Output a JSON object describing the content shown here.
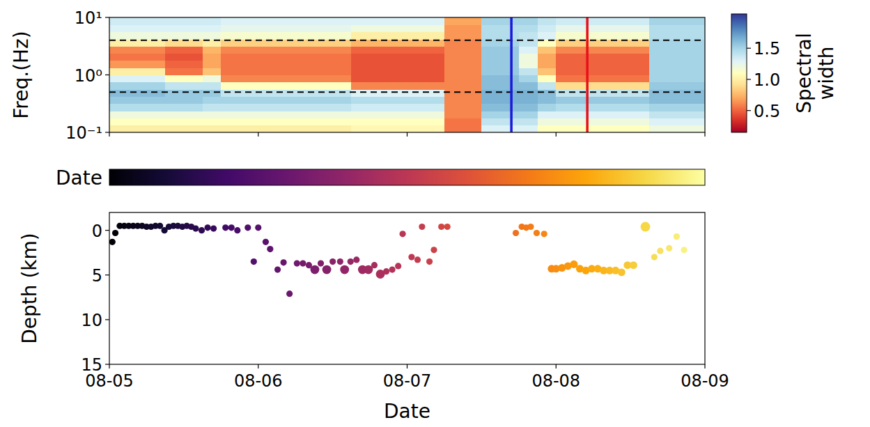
{
  "chart_data": [
    {
      "type": "heatmap",
      "y_label": "Freq.(Hz)",
      "log": "y",
      "xlim": [
        0,
        4
      ],
      "xticks": [
        0,
        1,
        2,
        3,
        4
      ],
      "ylim": [
        0.1,
        10
      ],
      "yticks": [
        {
          "value": 0.1,
          "label": "10⁻¹"
        },
        {
          "value": 1,
          "label": "10⁰"
        },
        {
          "value": 10,
          "label": "10¹"
        }
      ],
      "tick_labels": "y",
      "x_edges": [
        0,
        0.125,
        0.25,
        0.375,
        0.5,
        0.625,
        0.75,
        0.875,
        1,
        1.125,
        1.25,
        1.375,
        1.5,
        1.625,
        1.75,
        1.875,
        2,
        2.125,
        2.25,
        2.375,
        2.5,
        2.625,
        2.75,
        2.875,
        3,
        3.125,
        3.25,
        3.375,
        3.5,
        3.625,
        3.75,
        3.875,
        4
      ],
      "y_edges": [
        0.1,
        0.1334,
        0.1778,
        0.2371,
        0.3162,
        0.4217,
        0.5623,
        0.7499,
        1,
        1.3335,
        1.7783,
        2.3714,
        3.1623,
        4.217,
        5.6234,
        7.4989,
        10
      ],
      "cells": [
        [
          1,
          1,
          1,
          1,
          1,
          1,
          1,
          1,
          1,
          1,
          1,
          1,
          1,
          1.05,
          1.05,
          1.05,
          1.05,
          1.05,
          0.55,
          0.55,
          1.3,
          1.3,
          1.3,
          1.1,
          1.1,
          1.1,
          1.1,
          1.1,
          1.1,
          1.2,
          1.2,
          1.2
        ],
        [
          1.1,
          1.1,
          1.1,
          1.1,
          1.1,
          1.1,
          1.1,
          1.1,
          1.1,
          1.1,
          1.1,
          1.1,
          1.1,
          1.1,
          1.1,
          1.1,
          1.1,
          1.1,
          0.55,
          0.55,
          1.4,
          1.4,
          1.4,
          1.2,
          1.2,
          1.2,
          1.2,
          1.2,
          1.2,
          1.3,
          1.3,
          1.3
        ],
        [
          1.2,
          1.2,
          1.2,
          1.2,
          1.2,
          1.2,
          1.2,
          1.2,
          1.2,
          1.2,
          1.2,
          1.2,
          1.2,
          1.2,
          1.2,
          1.2,
          1.2,
          1.2,
          0.6,
          0.6,
          1.5,
          1.5,
          1.5,
          1.3,
          1.3,
          1.3,
          1.3,
          1.3,
          1.3,
          1.4,
          1.4,
          1.4
        ],
        [
          1.45,
          1.45,
          1.45,
          1.45,
          1.45,
          1.4,
          1.4,
          1.4,
          1.4,
          1.4,
          1.4,
          1.4,
          1.4,
          1.35,
          1.35,
          1.35,
          1.35,
          1.35,
          0.6,
          0.6,
          1.6,
          1.6,
          1.6,
          1.5,
          1.45,
          1.45,
          1.45,
          1.45,
          1.45,
          1.5,
          1.5,
          1.5
        ],
        [
          1.55,
          1.55,
          1.55,
          1.55,
          1.55,
          1.5,
          1.5,
          1.5,
          1.5,
          1.5,
          1.5,
          1.5,
          1.5,
          1.45,
          1.45,
          1.45,
          1.45,
          1.45,
          0.6,
          0.6,
          1.65,
          1.65,
          1.65,
          1.6,
          1.55,
          1.55,
          1.55,
          1.55,
          1.55,
          1.6,
          1.6,
          1.6
        ],
        [
          1.6,
          1.6,
          1.6,
          1.55,
          1.55,
          1.55,
          1.4,
          1.4,
          1.4,
          1.4,
          1.4,
          1.4,
          1.4,
          1.3,
          1.3,
          1.3,
          1.3,
          1.3,
          0.6,
          0.6,
          1.65,
          1.65,
          1.65,
          1.6,
          1.4,
          1.4,
          1.4,
          1.4,
          1.4,
          1.6,
          1.6,
          1.6
        ],
        [
          1.5,
          1.5,
          1.5,
          1.4,
          1.4,
          1.4,
          1.1,
          1.1,
          1.1,
          1.1,
          1.1,
          1.1,
          1.1,
          0.6,
          0.6,
          0.6,
          0.6,
          0.6,
          0.6,
          0.6,
          1.6,
          1.6,
          1.6,
          1.4,
          0.9,
          0.9,
          0.9,
          0.9,
          0.9,
          1.55,
          1.55,
          1.55
        ],
        [
          1.3,
          1.3,
          1.3,
          1.1,
          1.1,
          1.2,
          0.6,
          0.6,
          0.6,
          0.6,
          0.6,
          0.6,
          0.6,
          0.45,
          0.45,
          0.45,
          0.45,
          0.45,
          0.6,
          0.6,
          1.6,
          1.6,
          1.5,
          1.1,
          0.55,
          0.55,
          0.55,
          0.55,
          0.55,
          1.5,
          1.5,
          1.5
        ],
        [
          1,
          1,
          1,
          0.55,
          0.55,
          0.8,
          0.55,
          0.55,
          0.55,
          0.55,
          0.55,
          0.55,
          0.55,
          0.45,
          0.45,
          0.45,
          0.45,
          0.45,
          0.6,
          0.6,
          1.55,
          1.55,
          1.4,
          0.8,
          0.5,
          0.5,
          0.5,
          0.5,
          0.5,
          1.5,
          1.5,
          1.5
        ],
        [
          0.65,
          0.65,
          0.65,
          0.5,
          0.5,
          0.7,
          0.55,
          0.55,
          0.55,
          0.55,
          0.55,
          0.55,
          0.55,
          0.45,
          0.45,
          0.45,
          0.45,
          0.45,
          0.6,
          0.6,
          1.55,
          1.55,
          1.2,
          0.7,
          0.5,
          0.5,
          0.5,
          0.5,
          0.5,
          1.5,
          1.5,
          1.5
        ],
        [
          0.55,
          0.55,
          0.55,
          0.45,
          0.45,
          0.7,
          0.55,
          0.55,
          0.55,
          0.55,
          0.55,
          0.55,
          0.55,
          0.45,
          0.45,
          0.45,
          0.45,
          0.45,
          0.6,
          0.6,
          1.55,
          1.55,
          1.2,
          0.7,
          0.5,
          0.5,
          0.5,
          0.5,
          0.5,
          1.5,
          1.5,
          1.5
        ],
        [
          0.6,
          0.6,
          0.6,
          0.5,
          0.5,
          0.75,
          0.6,
          0.6,
          0.6,
          0.6,
          0.6,
          0.6,
          0.6,
          0.5,
          0.5,
          0.5,
          0.5,
          0.5,
          0.6,
          0.6,
          1.55,
          1.55,
          1.3,
          0.8,
          0.6,
          0.6,
          0.6,
          0.6,
          0.6,
          1.5,
          1.5,
          1.5
        ],
        [
          1,
          1,
          1,
          0.9,
          0.9,
          1,
          0.85,
          0.85,
          0.85,
          0.85,
          0.85,
          0.85,
          0.85,
          0.75,
          0.75,
          0.75,
          0.75,
          0.75,
          0.6,
          0.6,
          1.5,
          1.5,
          1.4,
          1.1,
          0.85,
          0.85,
          0.85,
          0.85,
          0.85,
          1.5,
          1.5,
          1.5
        ],
        [
          1.2,
          1.2,
          1.2,
          1.2,
          1.2,
          1.2,
          1.15,
          1.15,
          1.15,
          1.15,
          1.15,
          1.15,
          1.15,
          1,
          1,
          1,
          1,
          1,
          0.65,
          0.65,
          1.45,
          1.45,
          1.4,
          1.3,
          1.15,
          1.15,
          1.15,
          1.15,
          1.15,
          1.45,
          1.45,
          1.45
        ],
        [
          1.3,
          1.3,
          1.3,
          1.3,
          1.3,
          1.3,
          1.25,
          1.25,
          1.25,
          1.25,
          1.25,
          1.25,
          1.25,
          1.2,
          1.2,
          1.2,
          1.2,
          1.2,
          0.65,
          0.65,
          1.45,
          1.45,
          1.45,
          1.35,
          1.25,
          1.25,
          1.25,
          1.25,
          1.25,
          1.45,
          1.45,
          1.45
        ],
        [
          1.35,
          1.35,
          1.35,
          1.35,
          1.35,
          1.35,
          1.3,
          1.3,
          1.3,
          1.3,
          1.3,
          1.3,
          1.3,
          1.3,
          1.3,
          1.3,
          1.3,
          1.3,
          0.7,
          0.7,
          1.5,
          1.5,
          1.5,
          1.4,
          1.35,
          1.35,
          1.35,
          1.35,
          1.35,
          1.5,
          1.5,
          1.5
        ]
      ],
      "hlines": [
        0.5,
        4
      ],
      "vlines": [
        {
          "value": 2.7,
          "color": "#1a1adc"
        },
        {
          "value": 3.21,
          "color": "#e8101a"
        }
      ],
      "colorbar": {
        "label": "Spectral width",
        "range": [
          0.15,
          2.05
        ],
        "ticks": [
          0.5,
          {
            "value": 1,
            "label": "1.0"
          },
          1.5
        ]
      }
    },
    {
      "type": "scatter",
      "x_label": "Date",
      "y_label": "Depth (km)",
      "xlim": [
        0,
        4
      ],
      "xticks": [
        {
          "value": 0,
          "label": "08-05"
        },
        {
          "value": 1,
          "label": "08-06"
        },
        {
          "value": 2,
          "label": "08-07"
        },
        {
          "value": 3,
          "label": "08-08"
        },
        {
          "value": 4,
          "label": "08-09"
        }
      ],
      "ylim": [
        15,
        -2
      ],
      "yticks": [
        0,
        5,
        10,
        15
      ],
      "x": [
        0.02,
        0.04,
        0.07,
        0.1,
        0.13,
        0.16,
        0.19,
        0.22,
        0.25,
        0.28,
        0.31,
        0.34,
        0.37,
        0.4,
        0.43,
        0.46,
        0.49,
        0.52,
        0.55,
        0.58,
        0.62,
        0.66,
        0.7,
        0.78,
        0.82,
        0.86,
        0.93,
        0.97,
        1.0,
        1.05,
        1.08,
        1.13,
        1.17,
        1.21,
        1.26,
        1.3,
        1.34,
        1.38,
        1.42,
        1.46,
        1.5,
        1.55,
        1.58,
        1.62,
        1.66,
        1.7,
        1.74,
        1.78,
        1.82,
        1.86,
        1.9,
        1.94,
        1.97,
        2.03,
        2.07,
        2.1,
        2.15,
        2.18,
        2.23,
        2.27,
        2.73,
        2.77,
        2.8,
        2.83,
        2.87,
        2.92,
        2.97,
        3.0,
        3.04,
        3.08,
        3.12,
        3.16,
        3.2,
        3.24,
        3.28,
        3.32,
        3.36,
        3.4,
        3.44,
        3.48,
        3.52,
        3.6,
        3.66,
        3.7,
        3.76,
        3.81,
        3.86
      ],
      "y": [
        1.3,
        0.3,
        -0.5,
        -0.5,
        -0.5,
        -0.5,
        -0.5,
        -0.5,
        -0.4,
        -0.4,
        -0.5,
        -0.5,
        0,
        -0.4,
        -0.5,
        -0.5,
        -0.4,
        -0.5,
        -0.4,
        -0.2,
        0,
        -0.3,
        -0.2,
        -0.3,
        -0.3,
        0,
        -0.3,
        3.5,
        -0.3,
        1.3,
        2.1,
        4.4,
        3.6,
        7.1,
        3.7,
        3.7,
        3.9,
        4.4,
        3.7,
        4.4,
        3.5,
        3.5,
        4.4,
        3.5,
        3.3,
        4.4,
        4.4,
        3.9,
        4.9,
        4.6,
        4.4,
        4.0,
        0.4,
        3.0,
        3.3,
        -0.4,
        3.5,
        2.2,
        -0.4,
        -0.4,
        0.3,
        -0.4,
        -0.3,
        -0.4,
        0.3,
        0.4,
        4.3,
        4.3,
        4.2,
        4.0,
        3.8,
        4.3,
        4.5,
        4.3,
        4.3,
        4.5,
        4.5,
        4.5,
        4.7,
        3.9,
        3.9,
        -0.4,
        3.0,
        2.3,
        2.0,
        0.7,
        2.2
      ],
      "sizes": [
        1,
        1,
        1,
        1,
        1,
        1,
        1,
        1,
        1,
        1,
        1,
        1,
        1,
        1,
        1,
        1,
        1,
        1,
        1,
        1,
        1,
        1,
        1,
        1,
        1,
        1,
        1,
        1,
        1,
        1,
        1,
        1,
        1,
        1,
        1,
        1,
        1,
        1.4,
        1,
        1.4,
        1,
        1,
        1.4,
        1,
        1,
        1.4,
        1.4,
        1,
        1.4,
        1,
        1,
        1,
        1,
        1,
        1,
        1,
        1,
        1,
        1,
        1,
        1,
        1,
        1,
        1,
        1,
        1,
        1.2,
        1.2,
        1.2,
        1.2,
        1.2,
        1.2,
        1.2,
        1.2,
        1.2,
        1.2,
        1.2,
        1.2,
        1.2,
        1.2,
        1.2,
        1.5,
        1,
        1,
        1,
        1,
        1
      ],
      "colorbar": {
        "label": "Date",
        "range": [
          0,
          4
        ]
      }
    }
  ]
}
